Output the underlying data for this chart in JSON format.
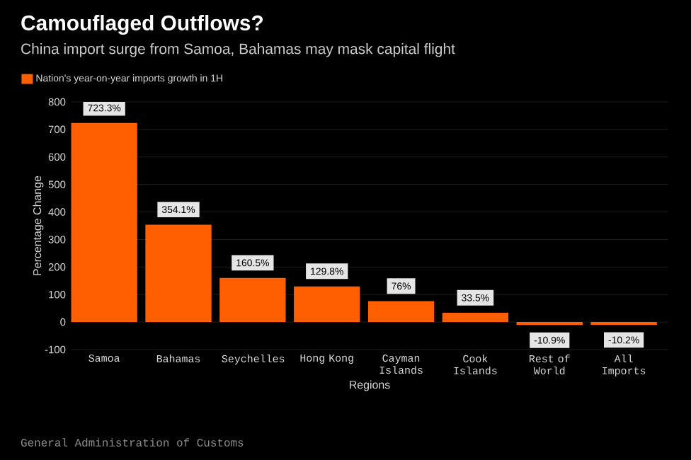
{
  "chart_data": {
    "type": "bar",
    "title": "Camouflaged Outflows?",
    "subtitle": "China import surge from Samoa, Bahamas may mask capital flight",
    "xlabel": "Regions",
    "ylabel": "Percentage Change",
    "categories": [
      "Samoa",
      "Bahamas",
      "Seychelles",
      "Hong Kong",
      "Cayman Islands",
      "Cook Islands",
      "Rest of World",
      "All Imports"
    ],
    "series": [
      {
        "name": "Nation's year-on-year imports growth in 1H",
        "color": "#ff5f00",
        "values": [
          723.3,
          354.1,
          160.5,
          129.8,
          76,
          33.5,
          -10.9,
          -10.2
        ],
        "value_labels": [
          "723.3%",
          "354.1%",
          "160.5%",
          "129.8%",
          "76%",
          "33.5%",
          "-10.9%",
          "-10.2%"
        ]
      }
    ],
    "ylim": [
      -100,
      800
    ],
    "yticks": [
      -100,
      0,
      100,
      200,
      300,
      400,
      500,
      600,
      700,
      800
    ],
    "grid": "y",
    "legend": "top left",
    "annotations": [
      "General Administration of Customs"
    ]
  }
}
